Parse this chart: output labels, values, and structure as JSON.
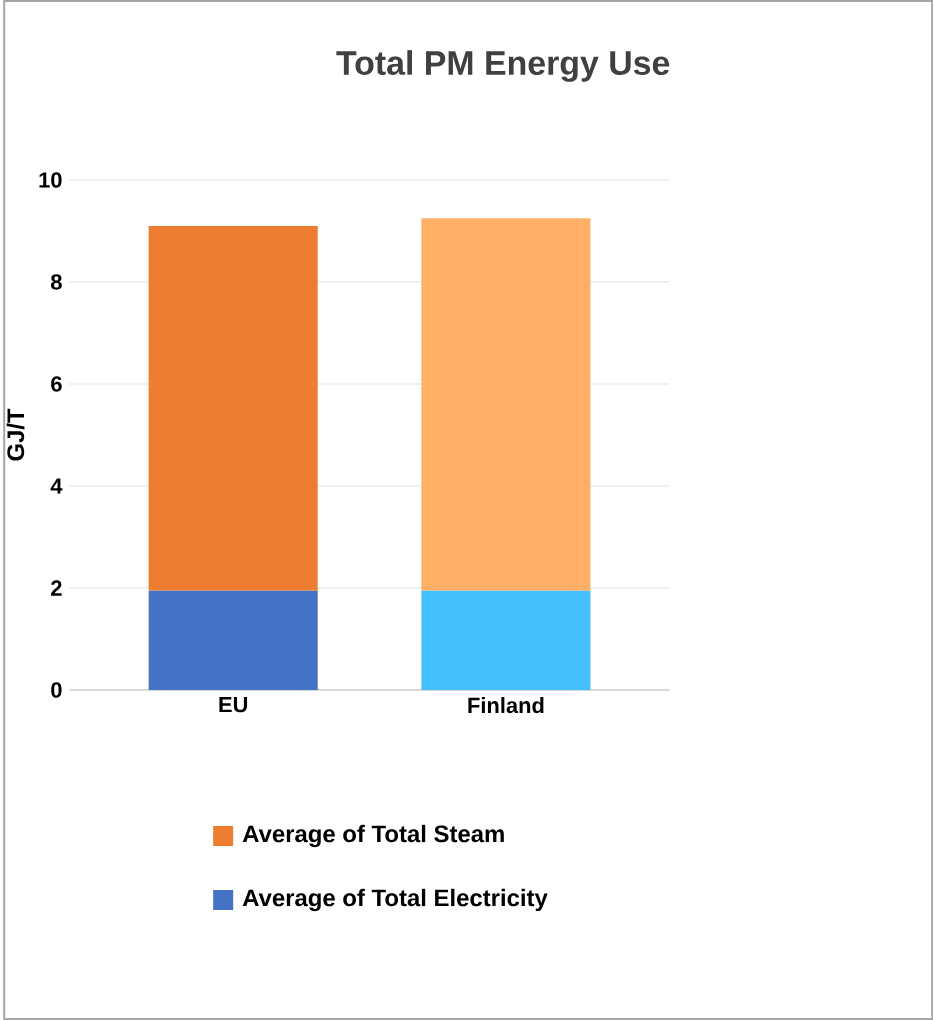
{
  "chart_data": {
    "type": "bar",
    "title": "Total PM Energy Use",
    "ylabel": "GJ/T",
    "categories": [
      "EU",
      "Finland"
    ],
    "stacked": true,
    "ylim": [
      0,
      10
    ],
    "yticks": [
      0,
      2,
      4,
      6,
      8,
      10
    ],
    "grid": "y",
    "legend": "bottom",
    "series": [
      {
        "name": "Average of Total Electricity",
        "color": "#4472c4",
        "colors": [
          "#4472c4",
          "#45c0ff"
        ],
        "values": [
          1.95,
          1.95
        ]
      },
      {
        "name": "Average of Total Steam",
        "color": "#ed7d31",
        "colors": [
          "#ed7d31",
          "#ffb066"
        ],
        "values": [
          7.15,
          7.3
        ]
      }
    ]
  }
}
